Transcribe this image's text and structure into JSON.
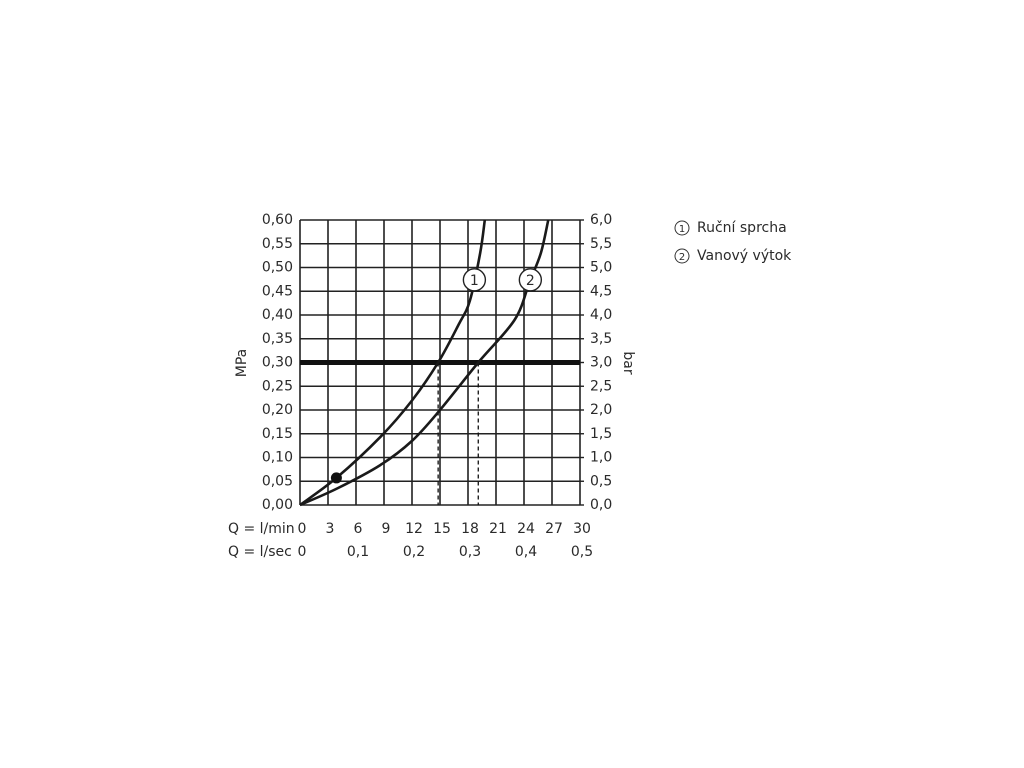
{
  "chart_data": {
    "type": "line",
    "y_label": "MPa",
    "y2_label": "bar",
    "x_label": "Q = l/min",
    "x2_label": "Q = l/sec",
    "xlim": [
      0,
      30
    ],
    "xticks": [
      0,
      3,
      6,
      9,
      12,
      15,
      18,
      21,
      24,
      27,
      30
    ],
    "x2lim": [
      0,
      0.5
    ],
    "x2ticks": [
      0,
      {
        "value": 0.1,
        "label": "0,1"
      },
      {
        "value": 0.2,
        "label": "0,2"
      },
      {
        "value": 0.3,
        "label": "0,3"
      },
      {
        "value": 0.4,
        "label": "0,4"
      },
      {
        "value": 0.5,
        "label": "0,5"
      }
    ],
    "ylim": [
      0,
      0.6
    ],
    "yticks": [
      {
        "value": 0,
        "label": "0,00"
      },
      {
        "value": 0.05,
        "label": "0,05"
      },
      {
        "value": 0.1,
        "label": "0,10"
      },
      {
        "value": 0.15,
        "label": "0,15"
      },
      {
        "value": 0.2,
        "label": "0,20"
      },
      {
        "value": 0.25,
        "label": "0,25"
      },
      {
        "value": 0.3,
        "label": "0,30"
      },
      {
        "value": 0.35,
        "label": "0,35"
      },
      {
        "value": 0.4,
        "label": "0,40"
      },
      {
        "value": 0.45,
        "label": "0,45"
      },
      {
        "value": 0.5,
        "label": "0,50"
      },
      {
        "value": 0.55,
        "label": "0,55"
      },
      {
        "value": 0.6,
        "label": "0,60"
      }
    ],
    "y2lim": [
      0,
      6
    ],
    "y2ticks": [
      {
        "value": 0,
        "label": "0,0"
      },
      {
        "value": 0.5,
        "label": "0,5"
      },
      {
        "value": 1,
        "label": "1,0"
      },
      {
        "value": 1.5,
        "label": "1,5"
      },
      {
        "value": 2,
        "label": "2,0"
      },
      {
        "value": 2.5,
        "label": "2,5"
      },
      {
        "value": 3,
        "label": "3,0"
      },
      {
        "value": 3.5,
        "label": "3,5"
      },
      {
        "value": 4,
        "label": "4,0"
      },
      {
        "value": 4.5,
        "label": "4,5"
      },
      {
        "value": 5,
        "label": "5,0"
      },
      {
        "value": 5.5,
        "label": "5,5"
      },
      {
        "value": 6,
        "label": "6,0"
      }
    ],
    "grid": true,
    "series": [
      {
        "name": "Ruční sprcha",
        "label": "1",
        "color": "#1a1a1a",
        "x": [
          0,
          3.9,
          8.6,
          12,
          14.8,
          17,
          18.2,
          19.3,
          19.8
        ],
        "values": [
          0,
          0.057,
          0.143,
          0.22,
          0.3,
          0.38,
          0.43,
          0.53,
          0.6
        ]
      },
      {
        "name": "Vanový výtok",
        "label": "2",
        "color": "#1a1a1a",
        "x": [
          0,
          4,
          8.6,
          12,
          15,
          19.1,
          23,
          24.6,
          25.8,
          26.6
        ],
        "values": [
          0,
          0.035,
          0.084,
          0.135,
          0.2,
          0.3,
          0.39,
          0.47,
          0.53,
          0.6
        ]
      }
    ],
    "reference_line": 0.3,
    "drop_lines": [
      14.8,
      19.1
    ],
    "marker": {
      "x": 3.9,
      "y": 0.057
    }
  }
}
